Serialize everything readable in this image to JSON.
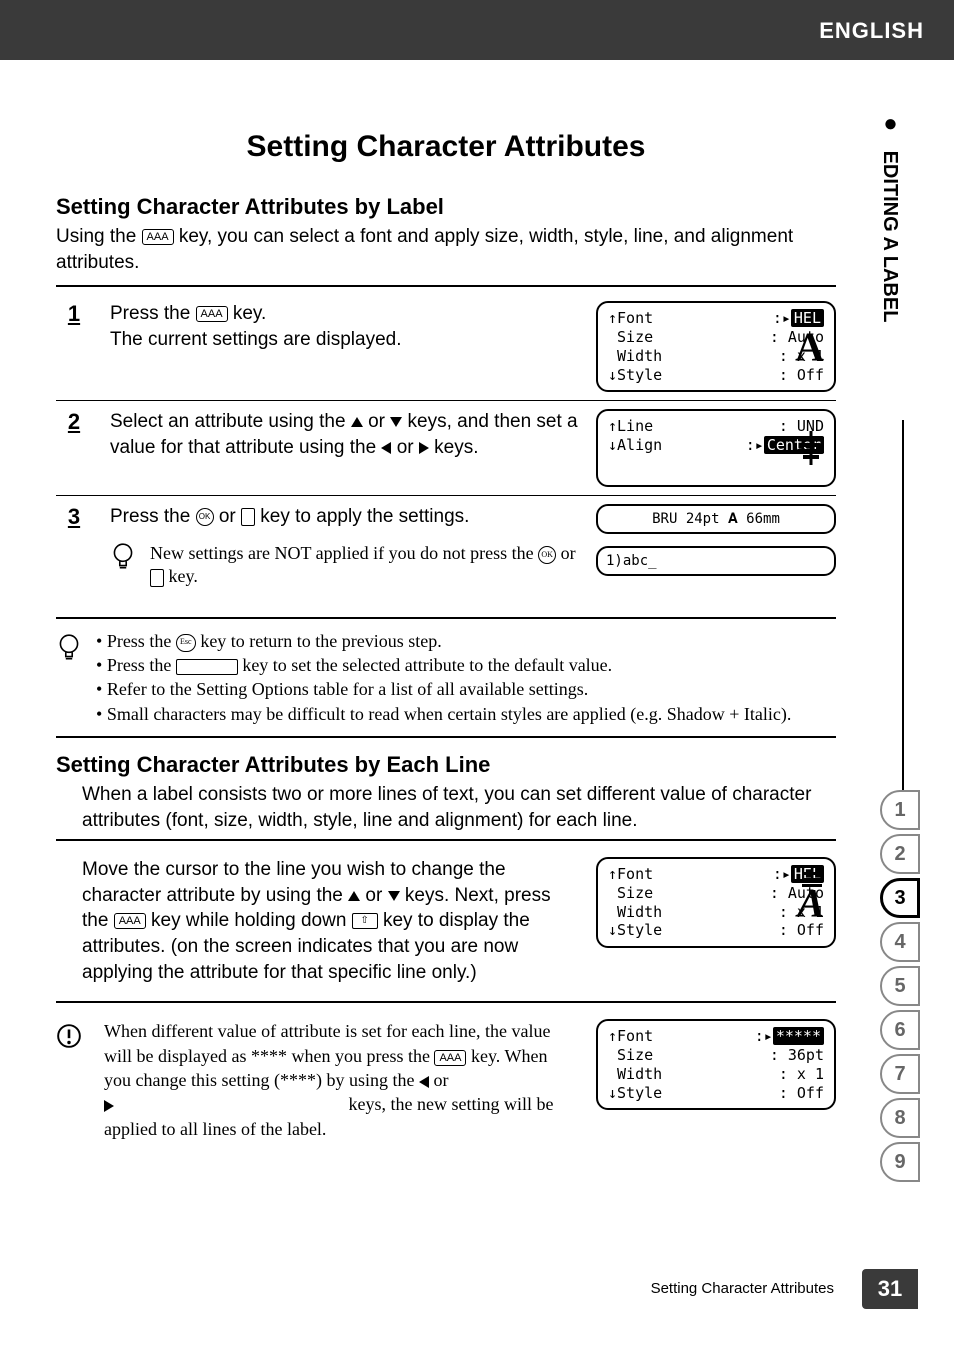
{
  "header": {
    "language": "ENGLISH"
  },
  "side_label": {
    "bullet": "●",
    "text": "EDITING A LABEL"
  },
  "dotted_rule": ". . . . . . . . . . . . . . . . . . . . . . . . . . . . . . . . . . . . . . . . . . . . . . . . . . . . . . . . . . . . . . . . . . . . . . . . . .",
  "title": "Setting Character Attributes",
  "section_by_label": {
    "heading": "Setting Character Attributes by Label",
    "intro_before_key": "Using the ",
    "intro_after_key": " key, you can select a font and apply size, width, style, line, and alignment attributes.",
    "steps": [
      {
        "num": "1",
        "text_before_key": "Press the ",
        "text_after_key": " key.",
        "text_line2": "The current settings are displayed.",
        "lcd": {
          "rows": [
            {
              "k": "Font",
              "sep": ":",
              "v": "HEL",
              "v_reversed": true,
              "cursor": "▸"
            },
            {
              "k": "Size",
              "sep": ":",
              "v": "Auto"
            },
            {
              "k": "Width",
              "sep": ":",
              "v": "x 1"
            },
            {
              "k": "Style",
              "sep": ":",
              "v": "Off"
            }
          ],
          "preview_glyph": "A",
          "preview_style": "bold"
        }
      },
      {
        "num": "2",
        "text": "Select an attribute using the ▲ or ▼ keys, and then set a value for that attribute using the ◀ or ▶ keys.",
        "lcd": {
          "rows": [
            {
              "k": "Line",
              "sep": ":",
              "v": "UND"
            },
            {
              "k": "Align",
              "sep": ":",
              "v": "Center",
              "v_reversed": true,
              "cursor": "▸"
            }
          ],
          "preview_icon": "center-align"
        }
      },
      {
        "num": "3",
        "text_before_keys": "Press the ",
        "text_between_keys": " or ",
        "text_after_keys": " key to apply the settings.",
        "lcd_top": {
          "text": "BRU 24pt 𝐀     66mm"
        },
        "lcd_bottom": {
          "text": "1)abc_"
        },
        "note": "New settings are NOT applied if you do not press the ⊚ or ↵ key."
      }
    ]
  },
  "tips": {
    "items": [
      "Press the (Esc) key to return to the previous step.",
      "Press the [        ] key to set the selected attribute to the default value.",
      "Refer to the Setting Options table for a list of all available settings.",
      "Small characters may be difficult to read when certain styles are applied (e.g. Shadow + Italic)."
    ]
  },
  "section_by_line": {
    "heading": "Setting Character Attributes by Each Line",
    "intro": "When a label consists two or more lines of text, you can set different value of character attributes (font, size, width, style, line and alignment) for each line.",
    "block1": {
      "text": "Move the cursor to the line you wish to change the character attribute by using the ▲ or ▼ keys. Next, press the (AAA) key while holding down (⇧) key to display the attributes. (on the screen indicates that you are now applying the attribute for that specific line only.)",
      "lcd": {
        "rows": [
          {
            "k": "Font",
            "sep": ":",
            "v": "HEL",
            "v_reversed": true,
            "cursor": "▸"
          },
          {
            "k": "Size",
            "sep": ":",
            "v": "Auto"
          },
          {
            "k": "Width",
            "sep": ":",
            "v": "x 1"
          },
          {
            "k": "Style",
            "sep": ":",
            "v": "Off"
          }
        ],
        "preview_glyph": "A",
        "preview_style": "italic",
        "show_hamburger": true
      }
    },
    "block2": {
      "text": "When different value of attribute is set for each line, the value will be displayed as **** when you press the (AAA) key. When you change this setting (****) by using the ◀ or ▶ keys, the new setting will be applied to all lines of the label.",
      "lcd": {
        "rows": [
          {
            "k": "Font",
            "sep": ":",
            "v": "*****",
            "v_reversed": true,
            "cursor": "▸"
          },
          {
            "k": "Size",
            "sep": ":",
            "v": "36pt"
          },
          {
            "k": "Width",
            "sep": ":",
            "v": "x 1"
          },
          {
            "k": "Style",
            "sep": ":",
            "v": "Off"
          }
        ]
      }
    }
  },
  "footer": {
    "text": "Setting Character Attributes",
    "page_number": "31"
  },
  "tabs": {
    "items": [
      "1",
      "2",
      "3",
      "4",
      "5",
      "6",
      "7",
      "8",
      "9"
    ],
    "active_index": 2
  },
  "icons": {
    "aaa_key_label": "AAA",
    "shift_key_label": "⇧",
    "ok_label": "OK",
    "esc_label": "Esc"
  },
  "colors": {
    "band": "#3a3a3a",
    "text": "#000000",
    "bg": "#ffffff",
    "tab_inactive": "#888888"
  }
}
